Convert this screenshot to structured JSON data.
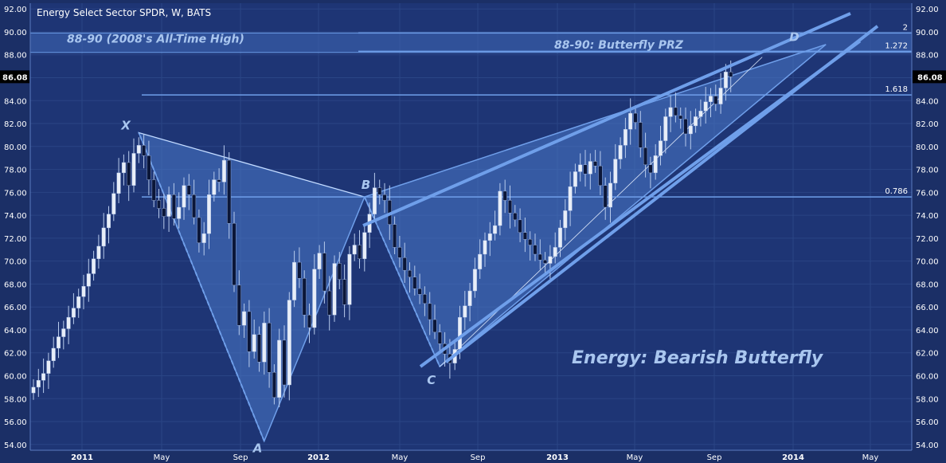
{
  "header": {
    "title": "Energy Select Sector SPDR, W, BATS"
  },
  "colors": {
    "background": "#1b2f66",
    "plot_background": "#1e3575",
    "grid": "#2a4585",
    "candle_up": "#e8eef8",
    "candle_down": "#0b1638",
    "pattern_fill": "#4a78c8",
    "line": "#6f9fea",
    "annotation": "#a9c6ef",
    "price_tag": "#000000"
  },
  "chart_data": {
    "type": "candlestick",
    "title": "Energy Select Sector SPDR, W, BATS",
    "ylim": [
      53.5,
      92.5
    ],
    "yticks": [
      "54.00",
      "56.00",
      "58.00",
      "60.00",
      "62.00",
      "64.00",
      "66.00",
      "68.00",
      "70.00",
      "72.00",
      "74.00",
      "76.00",
      "78.00",
      "80.00",
      "82.00",
      "84.00",
      "86.00",
      "88.00",
      "90.00",
      "92.00"
    ],
    "xticks": [
      "2011",
      "May",
      "Sep",
      "2012",
      "May",
      "Sep",
      "2013",
      "May",
      "Sep",
      "2014",
      "May"
    ],
    "last_price": "86.08",
    "weekly_close": [
      59,
      59.6,
      60.2,
      61.3,
      62.4,
      63.4,
      64.1,
      65.1,
      65.9,
      66.9,
      67.8,
      68.9,
      70.2,
      71.3,
      72.9,
      74.1,
      75.9,
      77.7,
      78.6,
      76.6,
      79.4,
      80.1,
      79.2,
      77.1,
      75.3,
      74.6,
      73.9,
      75.8,
      73.7,
      74.7,
      76.6,
      75.8,
      73.8,
      71.6,
      72.4,
      75.8,
      77.1,
      76.9,
      78.8,
      73.3,
      67.9,
      64.4,
      65.6,
      62.1,
      63.6,
      61.2,
      64.6,
      60.3,
      58.1,
      63.1,
      59.2,
      66.6,
      69.9,
      68.5,
      65.3,
      64.2,
      69.3,
      70.7,
      67.4,
      65.3,
      69.8,
      68.4,
      66.2,
      70.6,
      71.4,
      70.2,
      72.5,
      74.1,
      76.4,
      75.8,
      75.3,
      73.2,
      71.2,
      70.3,
      69.2,
      68.6,
      67.6,
      67.1,
      66.3,
      64.9,
      63.8,
      62.8,
      61.9,
      61.1,
      62.3,
      65.1,
      66.1,
      67.4,
      69.3,
      70.6,
      71.8,
      72.4,
      73.1,
      76.1,
      75.3,
      74.2,
      73.6,
      72.5,
      71.9,
      71.4,
      70.6,
      70.1,
      69.8,
      70.4,
      71.2,
      72.9,
      74.4,
      76.5,
      77.8,
      78.4,
      77.6,
      78.7,
      78.3,
      76.6,
      74.7,
      76.8,
      78.9,
      80.1,
      81.5,
      82.9,
      82.1,
      79.9,
      78.4,
      77.7,
      79.2,
      80.5,
      82.6,
      83.4,
      82.7,
      82.4,
      81.1,
      81.8,
      82.6,
      83.1,
      83.9,
      84.4,
      83.7,
      85.1,
      86.5,
      86.08
    ],
    "points": [
      {
        "label": "X",
        "value": 81.2
      },
      {
        "label": "A",
        "value": 54.3
      },
      {
        "label": "B",
        "value": 75.6
      },
      {
        "label": "C",
        "value": 60.8
      },
      {
        "label": "D",
        "value": 87.8
      }
    ],
    "fib_levels": [
      {
        "label": "2",
        "value": 89.9
      },
      {
        "label": "1.272",
        "value": 88.3
      },
      {
        "label": "1.618",
        "value": 84.5
      },
      {
        "label": "0.786",
        "value": 75.6
      }
    ],
    "zones": [
      {
        "label": "88-90 (2008's All-Time High)",
        "from": 88.2,
        "to": 89.9
      },
      {
        "label": "88-90: Butterfly PRZ",
        "from": 88.2,
        "to": 89.9
      }
    ],
    "annotation": "Energy: Bearish Butterfly"
  }
}
